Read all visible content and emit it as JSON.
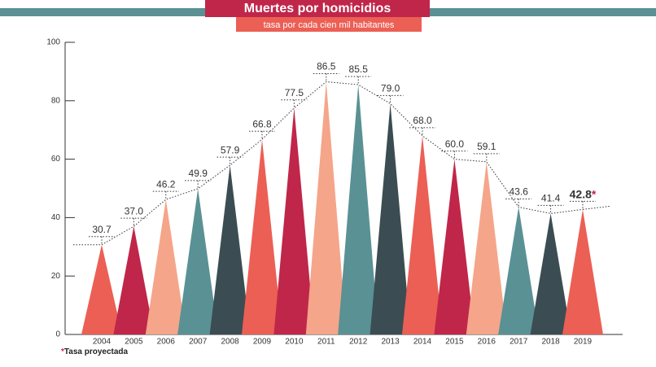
{
  "chart_data": {
    "type": "triangle-bar",
    "title": "Muertes por homicidios",
    "subtitle": "tasa por cada cien mil habitantes",
    "footnote": "*Tasa proyectada",
    "categories": [
      "2004",
      "2005",
      "2006",
      "2007",
      "2008",
      "2009",
      "2010",
      "2011",
      "2012",
      "2013",
      "2014",
      "2015",
      "2016",
      "2017",
      "2018",
      "2019"
    ],
    "values": [
      30.7,
      37.0,
      46.2,
      49.9,
      57.9,
      66.8,
      77.5,
      86.5,
      85.5,
      79.0,
      68.0,
      60.0,
      59.1,
      43.6,
      41.4,
      42.8
    ],
    "value_labels": [
      "30.7",
      "37.0",
      "46.2",
      "49.9",
      "57.9",
      "66.8",
      "77.5",
      "86.5",
      "85.5",
      "79.0",
      "68.0",
      "60.0",
      "59.1",
      "43.6",
      "41.4",
      "42.8*"
    ],
    "colors": [
      "#ec5f55",
      "#c0264a",
      "#f5a58a",
      "#5a9194",
      "#3b4d52"
    ],
    "ylim": [
      0,
      100
    ],
    "yticks": [
      0,
      20,
      40,
      60,
      80,
      100
    ]
  }
}
